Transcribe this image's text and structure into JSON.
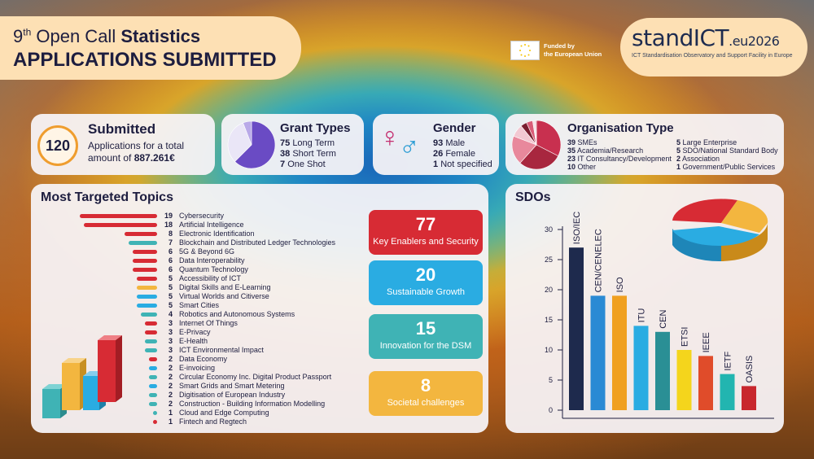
{
  "header": {
    "title_line1_prefix": "9",
    "title_line1_sup": "th",
    "title_line1_middle": " Open Call ",
    "title_line1_bold": "Statistics",
    "title_line2": "APPLICATIONS SUBMITTED"
  },
  "funding": {
    "text_line1": "Funded by",
    "text_line2": "the European Union"
  },
  "brand": {
    "name": "standICT",
    "suffix": ".eu2026",
    "subtitle": "ICT Standardisation Observatory and Support Facility in Europe"
  },
  "submitted": {
    "count": "120",
    "title": "Submitted",
    "text": "Applications for a total amount of ",
    "amount": "887.261€"
  },
  "grant_types": {
    "title": "Grant Types",
    "items": [
      {
        "value": "75",
        "label": "Long Term"
      },
      {
        "value": "38",
        "label": "Short Term"
      },
      {
        "value": "7",
        "label": "One Shot"
      }
    ]
  },
  "gender": {
    "title": "Gender",
    "items": [
      {
        "value": "93",
        "label": "Male"
      },
      {
        "value": "26",
        "label": "Female"
      },
      {
        "value": "1",
        "label": "Not specified"
      }
    ]
  },
  "organisation": {
    "title": "Organisation Type",
    "items": [
      {
        "value": "39",
        "label": "SMEs"
      },
      {
        "value": "35",
        "label": "Academia/Research"
      },
      {
        "value": "23",
        "label": "IT Consultancy/Development"
      },
      {
        "value": "10",
        "label": "Other"
      },
      {
        "value": "5",
        "label": "Large Enterprise"
      },
      {
        "value": "5",
        "label": "SDO/National Standard Body"
      },
      {
        "value": "2",
        "label": "Association"
      },
      {
        "value": "1",
        "label": "Government/Public Services"
      }
    ]
  },
  "topics_title": "Most Targeted Topics",
  "sdo_title": "SDOs",
  "colors": {
    "red": "#d72b34",
    "blue": "#2aace2",
    "teal": "#3fb3b5",
    "yellow": "#f3b63f",
    "navy": "#1e2a4d",
    "purple": "#6a4bc4",
    "pink": "#c03b67"
  },
  "chart_data": [
    {
      "type": "bar",
      "title": "Most Targeted Topics",
      "categories": [
        "Cybersecurity",
        "Artificial Intelligence",
        "Electronic Identification",
        "Blockchain and Distributed Ledger Technologies",
        "5G & Beyond 6G",
        "Data Interoperability",
        "Quantum Technology",
        "Accessibility of ICT",
        "Digital Skills and E-Learning",
        "Virtual Worlds and Citiverse",
        "Smart Cities",
        "Robotics and Autonomous Systems",
        "Internet Of Things",
        "E-Privacy",
        "E-Health",
        "ICT Environmental Impact",
        "Data Economy",
        "E-invoicing",
        "Circular Economy Inc. Digital Product Passport",
        "Smart Grids and Smart Metering",
        "Digitisation of European Industry",
        "Construction - Building Information Modelling",
        "Cloud and Edge Computing",
        "Fintech and Regtech"
      ],
      "values": [
        19,
        18,
        8,
        7,
        6,
        6,
        6,
        5,
        5,
        5,
        5,
        4,
        3,
        3,
        3,
        3,
        2,
        2,
        2,
        2,
        2,
        2,
        1,
        1
      ],
      "bar_colors": [
        "red",
        "red",
        "red",
        "teal",
        "red",
        "red",
        "red",
        "red",
        "yellow",
        "blue",
        "blue",
        "teal",
        "red",
        "red",
        "teal",
        "teal",
        "red",
        "blue",
        "teal",
        "blue",
        "teal",
        "teal",
        "teal",
        "red"
      ],
      "groups": [
        {
          "value": "77",
          "label": "Key Enablers and Security",
          "color": "red"
        },
        {
          "value": "20",
          "label": "Sustainable Growth",
          "color": "blue"
        },
        {
          "value": "15",
          "label": "Innovation for the DSM",
          "color": "teal"
        },
        {
          "value": "8",
          "label": "Societal challenges",
          "color": "yellow"
        }
      ]
    },
    {
      "type": "bar",
      "title": "SDOs",
      "categories": [
        "ISO/IEC",
        "CEN/CENELEC",
        "ISO",
        "ITU",
        "CEN",
        "ETSI",
        "IEEE",
        "IETF",
        "OASIS"
      ],
      "values": [
        27,
        19,
        19,
        14,
        13,
        10,
        9,
        6,
        4
      ],
      "colors": [
        "#1e2a4d",
        "#2a8ad4",
        "#f0a020",
        "#2aace2",
        "#2a8f95",
        "#f4d51c",
        "#e04c2a",
        "#22b5b0",
        "#c8272d"
      ],
      "ylim": [
        0,
        30
      ],
      "yticks": [
        "0",
        "5",
        "10",
        "15",
        "20",
        "25",
        "30"
      ]
    },
    {
      "type": "pie",
      "title": "Grant Types",
      "labels": [
        "Long Term",
        "Short Term",
        "One Shot"
      ],
      "values": [
        75,
        38,
        7
      ],
      "colors": [
        "#6a4bc4",
        "#eae6f7",
        "#b9a9e8"
      ]
    },
    {
      "type": "pie",
      "title": "Organisation Type",
      "labels": [
        "SMEs",
        "Academia/Research",
        "IT Consultancy/Development",
        "Other",
        "Large Enterprise",
        "SDO/National Standard Body",
        "Association",
        "Government/Public Services"
      ],
      "values": [
        39,
        35,
        23,
        10,
        5,
        5,
        2,
        1
      ],
      "colors": [
        "#c8304f",
        "#a8273f",
        "#e8889c",
        "#f2c8d2",
        "#7a1e30",
        "#d95c78",
        "#f6e0e6",
        "#e0a9b6"
      ]
    }
  ]
}
